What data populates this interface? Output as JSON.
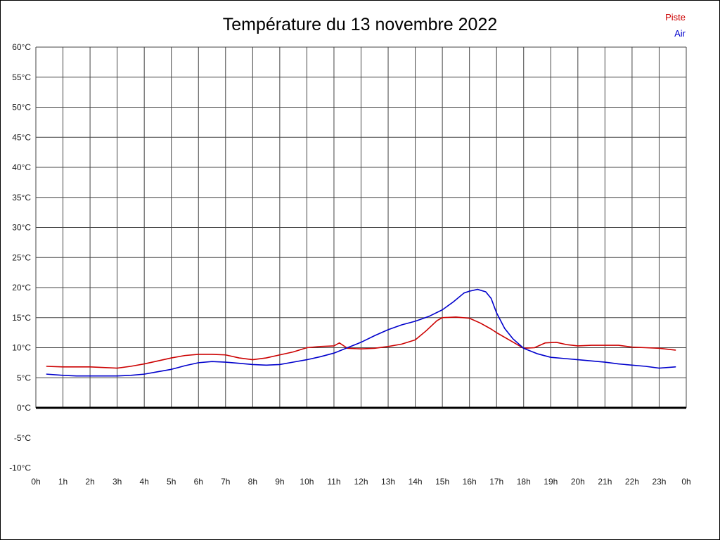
{
  "page": {
    "background": "#ffffff",
    "border_color": "#000000"
  },
  "chart_data": {
    "type": "line",
    "title": "Température du 13 novembre 2022",
    "xlabel": "",
    "ylabel": "",
    "x_range": [
      0,
      24
    ],
    "y_range": [
      -10,
      60
    ],
    "grid": {
      "vertical_step_hours": 1,
      "horizontal_step_deg": 5,
      "grid_visible_above_deg": 0,
      "zero_line_thick": true,
      "grid_color": "#444444",
      "zero_line_color": "#000000"
    },
    "legend": {
      "position": "top-right",
      "entries": [
        {
          "label": "Piste",
          "color": "#cc0000"
        },
        {
          "label": "Air",
          "color": "#0000cc"
        }
      ]
    },
    "x_tick_labels": [
      "0h",
      "1h",
      "2h",
      "3h",
      "4h",
      "5h",
      "6h",
      "7h",
      "8h",
      "9h",
      "10h",
      "11h",
      "12h",
      "13h",
      "14h",
      "15h",
      "16h",
      "17h",
      "18h",
      "19h",
      "20h",
      "21h",
      "22h",
      "23h",
      "0h"
    ],
    "y_tick_values": [
      -10,
      -5,
      0,
      5,
      10,
      15,
      20,
      25,
      30,
      35,
      40,
      45,
      50,
      55,
      60
    ],
    "y_tick_labels": [
      "-10°C",
      "-5°C",
      "0°C",
      "5°C",
      "10°C",
      "15°C",
      "20°C",
      "25°C",
      "30°C",
      "35°C",
      "40°C",
      "45°C",
      "50°C",
      "55°C",
      "60°C"
    ],
    "series": [
      {
        "name": "Piste",
        "color": "#cc0000",
        "points": [
          [
            0.4,
            6.9
          ],
          [
            1,
            6.8
          ],
          [
            1.5,
            6.8
          ],
          [
            2,
            6.8
          ],
          [
            2.5,
            6.7
          ],
          [
            3,
            6.6
          ],
          [
            3.5,
            6.9
          ],
          [
            4,
            7.3
          ],
          [
            4.5,
            7.8
          ],
          [
            5,
            8.3
          ],
          [
            5.5,
            8.7
          ],
          [
            6,
            8.9
          ],
          [
            6.5,
            8.9
          ],
          [
            7,
            8.8
          ],
          [
            7.5,
            8.3
          ],
          [
            8,
            8.0
          ],
          [
            8.5,
            8.3
          ],
          [
            9,
            8.8
          ],
          [
            9.5,
            9.3
          ],
          [
            10,
            10.0
          ],
          [
            10.5,
            10.2
          ],
          [
            11,
            10.3
          ],
          [
            11.2,
            10.8
          ],
          [
            11.5,
            9.9
          ],
          [
            12,
            9.8
          ],
          [
            12.5,
            9.9
          ],
          [
            13,
            10.2
          ],
          [
            13.5,
            10.6
          ],
          [
            14,
            11.3
          ],
          [
            14.4,
            12.8
          ],
          [
            14.8,
            14.5
          ],
          [
            15,
            15.0
          ],
          [
            15.5,
            15.1
          ],
          [
            16,
            14.9
          ],
          [
            16.4,
            14.1
          ],
          [
            16.8,
            13.1
          ],
          [
            17,
            12.5
          ],
          [
            17.5,
            11.2
          ],
          [
            18,
            9.9
          ],
          [
            18.4,
            10.0
          ],
          [
            18.8,
            10.8
          ],
          [
            19.2,
            10.9
          ],
          [
            19.6,
            10.5
          ],
          [
            20,
            10.3
          ],
          [
            20.5,
            10.4
          ],
          [
            21,
            10.4
          ],
          [
            21.5,
            10.4
          ],
          [
            22,
            10.1
          ],
          [
            22.5,
            10.0
          ],
          [
            23,
            9.9
          ],
          [
            23.6,
            9.6
          ]
        ]
      },
      {
        "name": "Air",
        "color": "#0000cc",
        "points": [
          [
            0.4,
            5.6
          ],
          [
            1,
            5.4
          ],
          [
            1.5,
            5.3
          ],
          [
            2,
            5.3
          ],
          [
            2.5,
            5.3
          ],
          [
            3,
            5.3
          ],
          [
            3.5,
            5.4
          ],
          [
            4,
            5.6
          ],
          [
            4.5,
            6.0
          ],
          [
            5,
            6.4
          ],
          [
            5.5,
            7.0
          ],
          [
            6,
            7.5
          ],
          [
            6.5,
            7.7
          ],
          [
            7,
            7.6
          ],
          [
            7.5,
            7.4
          ],
          [
            8,
            7.2
          ],
          [
            8.5,
            7.1
          ],
          [
            9,
            7.2
          ],
          [
            9.5,
            7.6
          ],
          [
            10,
            8.0
          ],
          [
            10.5,
            8.5
          ],
          [
            11,
            9.1
          ],
          [
            11.5,
            10.0
          ],
          [
            12,
            10.9
          ],
          [
            12.5,
            12.0
          ],
          [
            13,
            13.0
          ],
          [
            13.5,
            13.8
          ],
          [
            14,
            14.4
          ],
          [
            14.5,
            15.2
          ],
          [
            15,
            16.3
          ],
          [
            15.4,
            17.6
          ],
          [
            15.8,
            19.1
          ],
          [
            16,
            19.4
          ],
          [
            16.3,
            19.7
          ],
          [
            16.6,
            19.3
          ],
          [
            16.8,
            18.2
          ],
          [
            17,
            15.8
          ],
          [
            17.3,
            13.2
          ],
          [
            17.6,
            11.5
          ],
          [
            18,
            9.9
          ],
          [
            18.5,
            9.0
          ],
          [
            19,
            8.4
          ],
          [
            19.5,
            8.2
          ],
          [
            20,
            8.0
          ],
          [
            20.5,
            7.8
          ],
          [
            21,
            7.6
          ],
          [
            21.5,
            7.3
          ],
          [
            22,
            7.1
          ],
          [
            22.5,
            6.9
          ],
          [
            23,
            6.6
          ],
          [
            23.6,
            6.8
          ]
        ]
      }
    ]
  }
}
